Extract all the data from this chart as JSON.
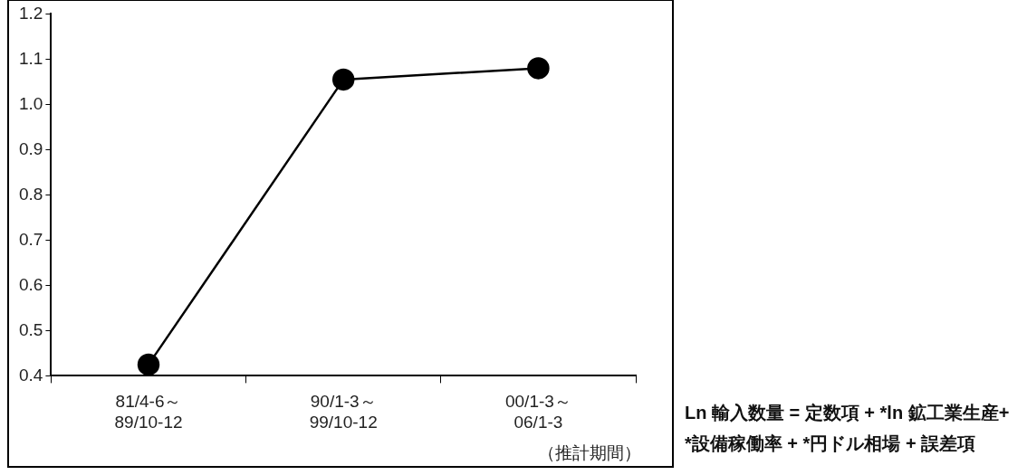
{
  "chart_data": {
    "type": "line",
    "categories": [
      "81/4-6～\n89/10-12",
      "90/1-3～\n99/10-12",
      "00/1-3～\n06/1-3"
    ],
    "series": [
      {
        "color": "#000000",
        "values": [
          0.425,
          1.055,
          1.08
        ]
      }
    ],
    "ylim": [
      0.4,
      1.2
    ],
    "yticks": [
      {
        "value": 0.4,
        "label": "0.4"
      },
      {
        "value": 0.5,
        "label": "0.5"
      },
      {
        "value": 0.6,
        "label": "0.6"
      },
      {
        "value": 0.7,
        "label": "0.7"
      },
      {
        "value": 0.8,
        "label": "0.8"
      },
      {
        "value": 0.9,
        "label": "0.9"
      },
      {
        "value": 1.0,
        "label": "1.0"
      },
      {
        "value": 1.1,
        "label": "1.1"
      },
      {
        "value": 1.2,
        "label": "1.2"
      }
    ],
    "grid": false,
    "legend": false,
    "marker": "circle",
    "line_style": "solid",
    "annotations": [
      "（推計期間）",
      "Ln  輸入数量 = 定数項 +    *ln 鉱工業生産+   *設備稼働率 +   *円ドル相場 + 誤差項"
    ]
  }
}
